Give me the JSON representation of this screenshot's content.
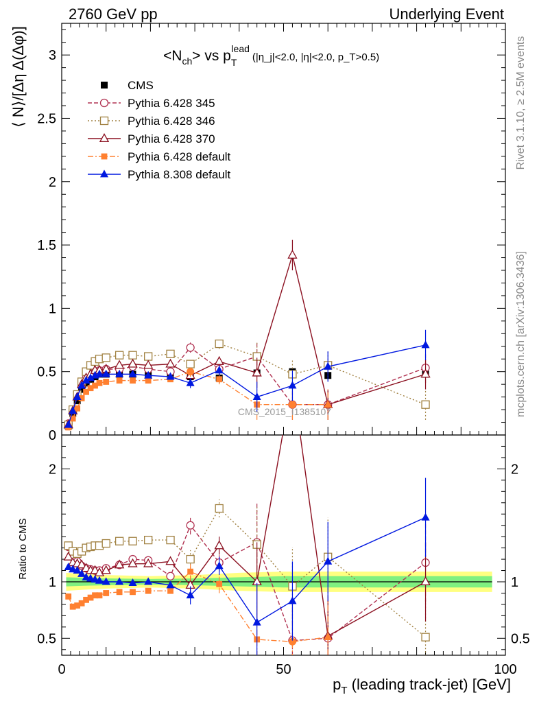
{
  "header": {
    "left": "2760 GeV pp",
    "right": "Underlying Event"
  },
  "title": {
    "main": "<N",
    "sub1": "ch",
    "mid": "> vs p",
    "sub2": "T",
    "sup": "lead",
    "cond": "(|η_j|<2.0, |η|<2.0, p_T>0.5)"
  },
  "side_labels": {
    "rivet": "Rivet 3.1.10, ≥ 2.5M events",
    "mcplots": "mcplots.cern.ch [arXiv:1306.3436]"
  },
  "watermark": "CMS_2015_I1385107",
  "colors": {
    "cms": "#000000",
    "p345": "#b03050",
    "p346": "#a08040",
    "p370": "#8b1020",
    "p6def": "#ff8030",
    "p8def": "#0018e0",
    "band_inner": "#80f080",
    "band_outer": "#ffff80"
  },
  "chart_data": [
    {
      "type": "line",
      "panel": "main",
      "ylabel": "⟨ N⟩/[Δη Δ(Δφ)]",
      "xlim": [
        0,
        100
      ],
      "ylim": [
        0,
        3.25
      ],
      "yticks": [
        "0",
        "0.5",
        "1",
        "1.5",
        "2",
        "2.5",
        "3"
      ],
      "x": [
        1.5,
        2.5,
        3.5,
        4.5,
        5.5,
        6.5,
        7.5,
        8.5,
        10,
        13,
        16,
        19.5,
        24.5,
        29,
        35.5,
        44,
        52,
        60,
        82
      ],
      "series": [
        {
          "name": "CMS",
          "key": "cms",
          "marker": "square-filled",
          "values": [
            0.07,
            0.17,
            0.27,
            0.36,
            0.41,
            0.44,
            0.46,
            0.48,
            0.48,
            0.48,
            0.48,
            0.47,
            0.47,
            0.46,
            0.45,
            0.49,
            0.5,
            0.47,
            0.48
          ]
        },
        {
          "name": "Pythia 6.428 345",
          "key": "p345",
          "marker": "circle-open",
          "dash": "6,3",
          "values": [
            0.09,
            0.2,
            0.31,
            0.4,
            0.45,
            0.48,
            0.5,
            0.51,
            0.52,
            0.52,
            0.54,
            0.52,
            0.5,
            0.69,
            0.52,
            0.62,
            0.24,
            0.24,
            0.53
          ]
        },
        {
          "name": "Pythia 6.428 346",
          "key": "p346",
          "marker": "square-open",
          "dash": "2,3",
          "values": [
            0.08,
            0.2,
            0.32,
            0.42,
            0.5,
            0.55,
            0.58,
            0.6,
            0.61,
            0.63,
            0.63,
            0.62,
            0.64,
            0.56,
            0.72,
            0.62,
            0.48,
            0.55,
            0.24
          ]
        },
        {
          "name": "Pythia 6.428 370",
          "key": "p370",
          "marker": "triangle-open",
          "dash": "",
          "values": [
            0.08,
            0.19,
            0.3,
            0.4,
            0.45,
            0.48,
            0.51,
            0.51,
            0.52,
            0.55,
            0.56,
            0.55,
            0.56,
            0.47,
            0.58,
            0.49,
            1.42,
            0.24,
            0.48
          ]
        },
        {
          "name": "Pythia 6.428 default",
          "key": "p6def",
          "marker": "square-filled-small",
          "dash": "8,3,2,3",
          "values": [
            0.06,
            0.13,
            0.21,
            0.29,
            0.34,
            0.37,
            0.39,
            0.41,
            0.42,
            0.43,
            0.43,
            0.43,
            0.44,
            0.5,
            0.44,
            0.24,
            0.24,
            0.24,
            null
          ]
        },
        {
          "name": "Pythia 8.308 default",
          "key": "p8def",
          "marker": "triangle-filled",
          "dash": "",
          "values": [
            0.08,
            0.19,
            0.3,
            0.39,
            0.43,
            0.45,
            0.47,
            0.48,
            0.48,
            0.48,
            0.48,
            0.47,
            0.46,
            0.41,
            0.51,
            0.3,
            0.39,
            0.54,
            0.71
          ]
        }
      ]
    },
    {
      "type": "line",
      "panel": "ratio",
      "ylabel": "Ratio to CMS",
      "xlabel": "p_T (leading track-jet) [GeV]",
      "xlim": [
        0,
        100
      ],
      "ylim": [
        0.35,
        2.3
      ],
      "yticks": [
        "0.5",
        "1",
        "2"
      ],
      "xticks": [
        "0",
        "50",
        "100"
      ],
      "reference": 1,
      "x": [
        1.5,
        2.5,
        3.5,
        4.5,
        5.5,
        6.5,
        7.5,
        8.5,
        10,
        13,
        16,
        19.5,
        24.5,
        29,
        35.5,
        44,
        52,
        60,
        82
      ],
      "series": [
        {
          "name": "Pythia 6.428 345",
          "key": "p345",
          "values": [
            1.31,
            1.22,
            1.18,
            1.14,
            1.12,
            1.11,
            1.1,
            1.1,
            1.12,
            1.15,
            1.2,
            1.19,
            1.05,
            1.5,
            1.17,
            1.35,
            0.48,
            0.5,
            1.17
          ]
        },
        {
          "name": "Pythia 6.428 346",
          "key": "p346",
          "values": [
            1.32,
            1.27,
            1.25,
            1.27,
            1.3,
            1.31,
            1.32,
            1.32,
            1.34,
            1.36,
            1.36,
            1.37,
            1.37,
            1.2,
            1.65,
            1.33,
            0.96,
            1.22,
            0.51
          ]
        },
        {
          "name": "Pythia 6.428 370",
          "key": "p370",
          "values": [
            1.22,
            1.17,
            1.16,
            1.15,
            1.12,
            1.1,
            1.1,
            1.08,
            1.1,
            1.15,
            1.16,
            1.16,
            1.18,
            0.97,
            1.32,
            1.0,
            2.8,
            0.52,
            1.0
          ]
        },
        {
          "name": "Pythia 6.428 default",
          "key": "p6def",
          "values": [
            0.87,
            0.78,
            0.79,
            0.81,
            0.84,
            0.86,
            0.88,
            0.88,
            0.9,
            0.91,
            0.91,
            0.92,
            0.92,
            1.09,
            0.98,
            0.49,
            0.47,
            0.51,
            null
          ]
        },
        {
          "name": "Pythia 8.308 default",
          "key": "p8def",
          "values": [
            1.13,
            1.11,
            1.1,
            1.07,
            1.04,
            1.03,
            1.02,
            1.01,
            1.0,
            1.0,
            0.99,
            1.0,
            0.97,
            0.88,
            1.14,
            0.64,
            0.83,
            1.18,
            1.57
          ]
        }
      ]
    }
  ]
}
